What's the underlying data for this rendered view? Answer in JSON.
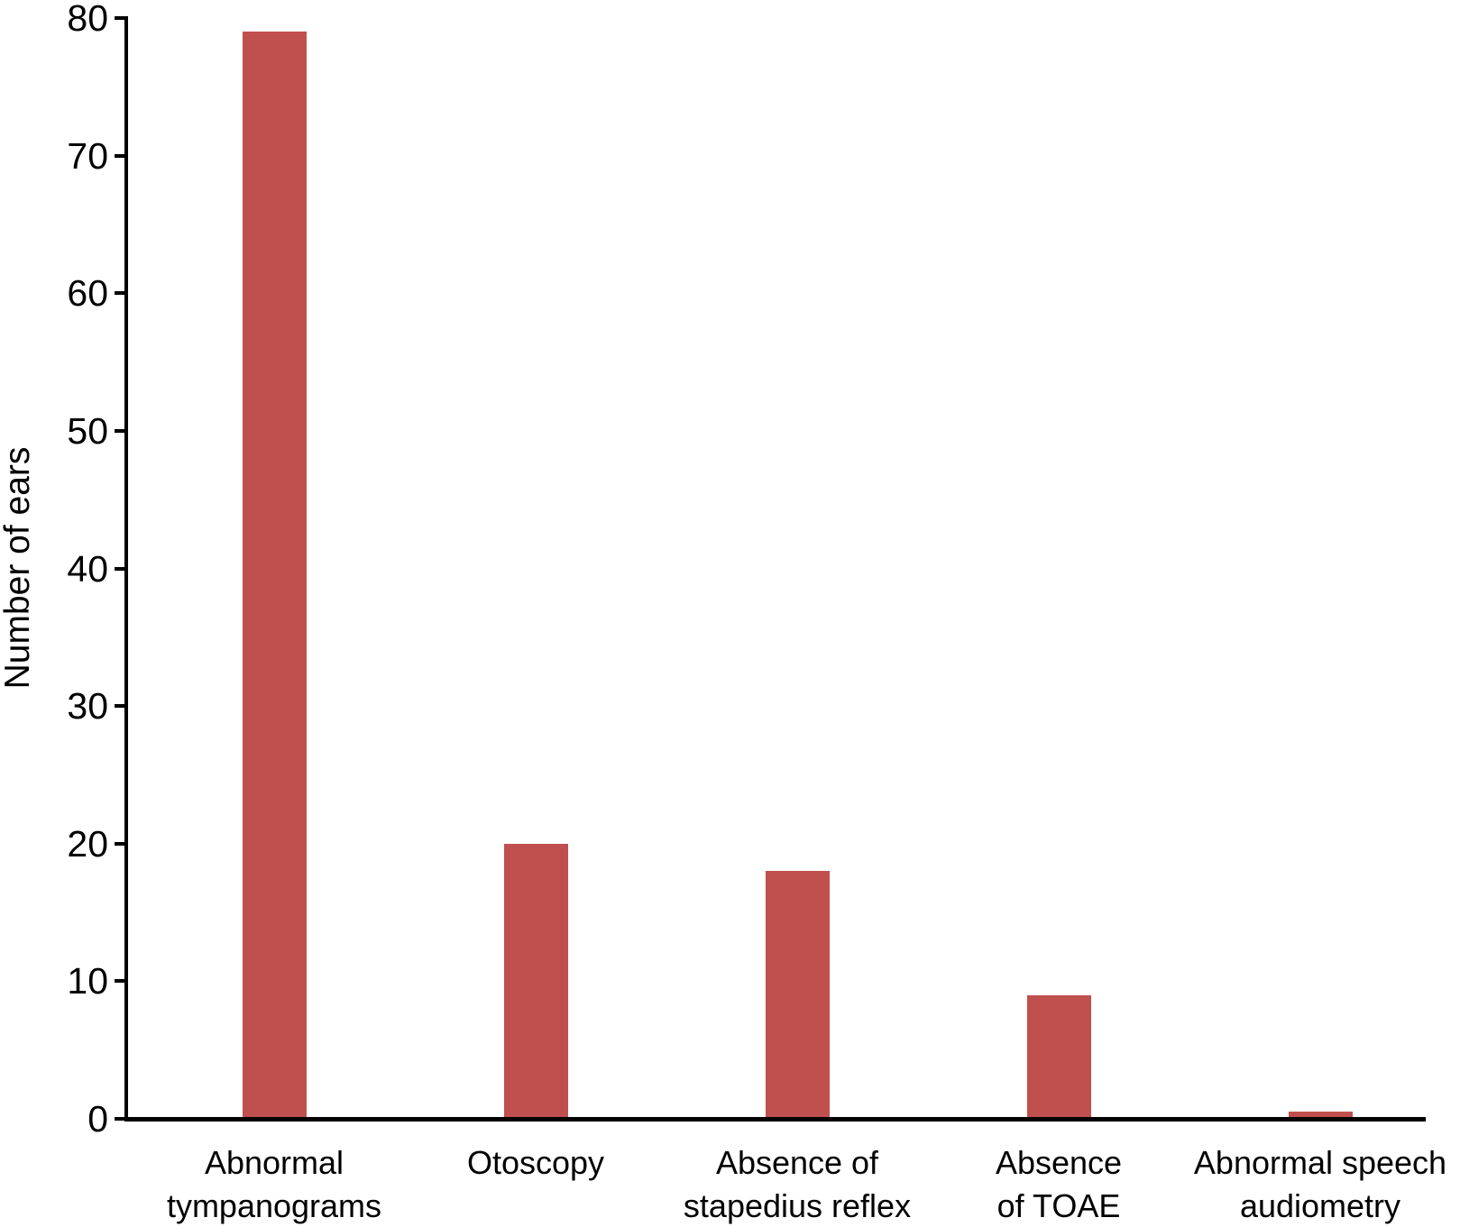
{
  "chart_data": {
    "type": "bar",
    "title": "",
    "xlabel": "",
    "ylabel": "Number of ears",
    "categories": [
      "Abnormal\ntympanograms",
      "Otoscopy",
      "Absence of\nstapedius reflex",
      "Absence\nof TOAE",
      "Abnormal speech\naudiometry"
    ],
    "values": [
      79,
      20,
      18,
      9,
      0.5
    ],
    "ylim": [
      0,
      80
    ],
    "yticks": [
      0,
      10,
      20,
      30,
      40,
      50,
      60,
      70,
      80
    ],
    "bar_color": "#c0504d",
    "axis_color": "#000000",
    "grid": false,
    "legend": false,
    "background_color": "#ffffff"
  }
}
